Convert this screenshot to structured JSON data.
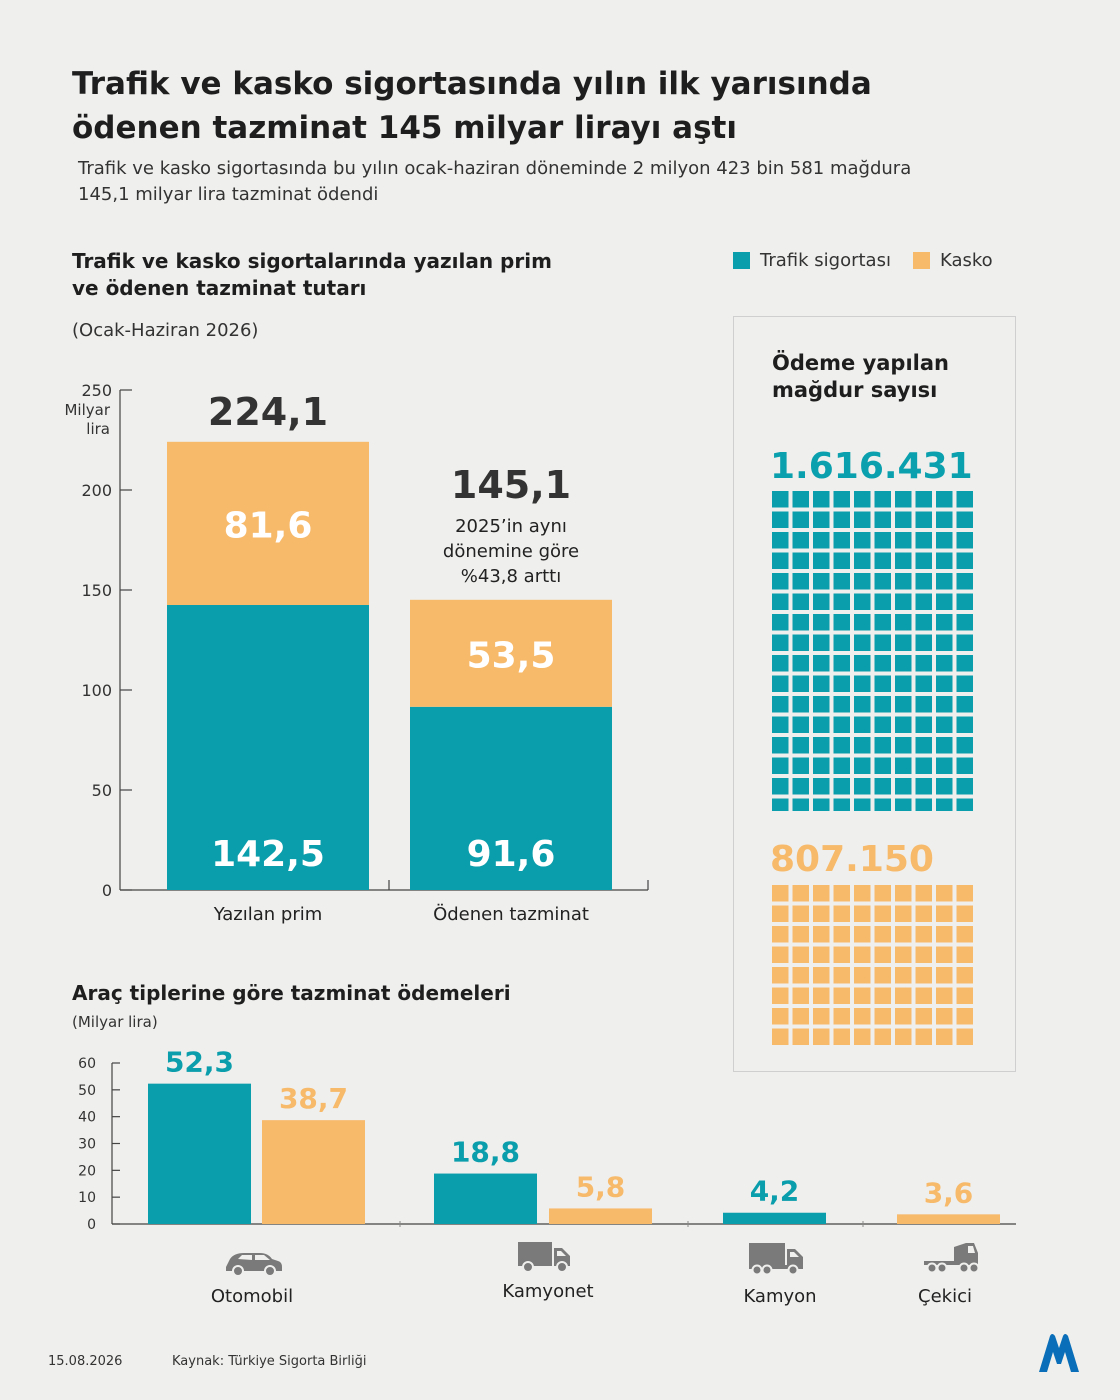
{
  "header": {
    "title": "Trafik ve kasko sigortasında yılın ilk yarısında ödenen tazminat 145 milyar lirayı aştı",
    "subtitle": "Trafik ve kasko sigortasında bu yılın ocak-haziran döneminde 2 milyon 423 bin 581 mağdura 145,1 milyar lira tazminat ödendi"
  },
  "legend": {
    "traffic": "Trafik sigortası",
    "kasko": "Kasko"
  },
  "colors": {
    "traffic": "#0a9dab",
    "kasko": "#f7b96a",
    "text": "#1e1e1e"
  },
  "chart_data": [
    {
      "type": "bar",
      "title": "Trafik ve kasko sigortalarında yazılan prim ve ödenen tazminat tutarı",
      "period": "(Ocak-Haziran  2026)",
      "ylabel": "Milyar lira",
      "ylim": [
        0,
        250
      ],
      "yticks": [
        "0",
        "50",
        "100",
        "150",
        "200",
        "250"
      ],
      "stacked": true,
      "categories": [
        "Yazılan prim",
        "Ödenen tazminat"
      ],
      "series": [
        {
          "name": "Trafik sigortası",
          "values": [
            142.5,
            91.6
          ],
          "labels": [
            "142,5",
            "91,6"
          ]
        },
        {
          "name": "Kasko",
          "values": [
            81.6,
            53.5
          ],
          "labels": [
            "81,6",
            "53,5"
          ]
        }
      ],
      "totals": [
        "224,1",
        "145,1"
      ],
      "annotation": [
        "2025’in aynı",
        "dönemine göre",
        "%43,8 arttı"
      ]
    },
    {
      "type": "bar",
      "title": "Araç tiplerine göre tazminat ödemeleri",
      "unit": "(Milyar lira)",
      "ylim": [
        0,
        60
      ],
      "yticks": [
        "0",
        "10",
        "20",
        "30",
        "40",
        "50",
        "60"
      ],
      "categories": [
        "Otomobil",
        "Kamyonet",
        "Kamyon",
        "Çekici"
      ],
      "series": [
        {
          "name": "Trafik sigortası",
          "values": [
            52.3,
            18.8,
            4.2,
            null
          ],
          "labels": [
            "52,3",
            "18,8",
            "4,2",
            ""
          ]
        },
        {
          "name": "Kasko",
          "values": [
            38.7,
            5.8,
            null,
            3.6
          ],
          "labels": [
            "38,7",
            "5,8",
            "",
            "3,6"
          ]
        }
      ],
      "icons": [
        "car-icon",
        "pickup-truck-icon",
        "truck-icon",
        "tractor-trailer-icon"
      ]
    }
  ],
  "victims": {
    "title": "Ödeme yapılan mağdur sayısı",
    "traffic_label": "1.616.431",
    "kasko_label": "807.150"
  },
  "footer": {
    "date": "15.08.2026",
    "source": "Kaynak: Türkiye Sigorta Birliği",
    "logo": "AA"
  }
}
